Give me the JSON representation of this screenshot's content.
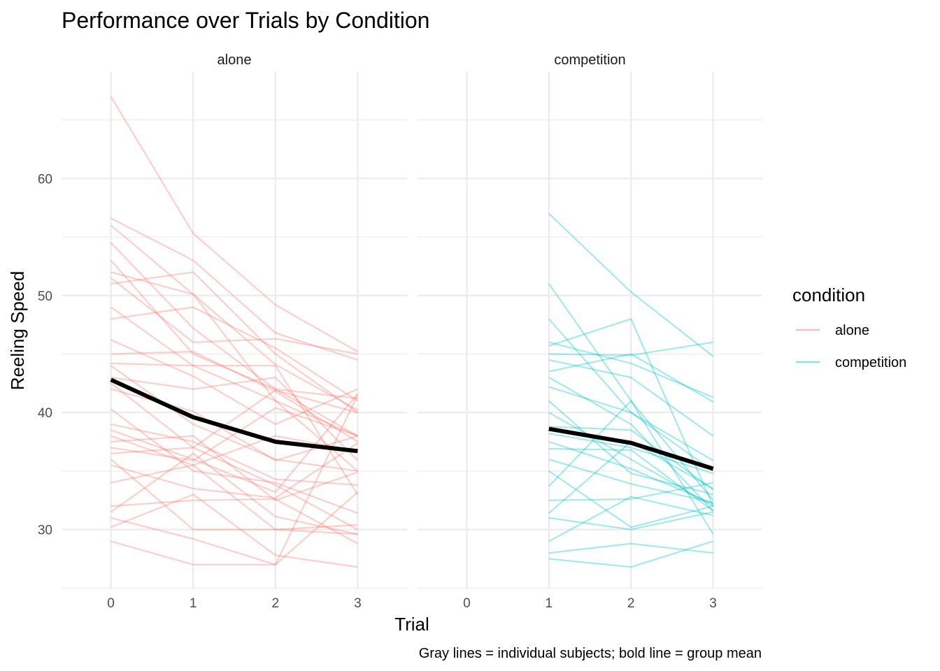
{
  "chart_data": {
    "type": "line",
    "title": "Performance over Trials by Condition",
    "xlabel": "Trial",
    "ylabel": "Reeling Speed",
    "caption": "Gray lines = individual subjects; bold line = group mean",
    "x_ticks": [
      0,
      1,
      2,
      3
    ],
    "y_ticks": [
      30,
      40,
      50,
      60
    ],
    "xlim": [
      -0.6,
      3.6
    ],
    "ylim": [
      24.9,
      69.1
    ],
    "grid": true,
    "legend": {
      "title": "condition",
      "position": "right",
      "entries": [
        {
          "label": "alone",
          "color": "#F8766D"
        },
        {
          "label": "competition",
          "color": "#00BFC4"
        }
      ]
    },
    "mean_color": "#000000",
    "panels": [
      {
        "name": "alone",
        "color": "#F8766D",
        "x": [
          0,
          1,
          2,
          3
        ],
        "mean": [
          42.8,
          39.6,
          37.5,
          36.7
        ],
        "subjects": [
          [
            67.0,
            55.3,
            49.2,
            45.2
          ],
          [
            56.6,
            53.0,
            46.8,
            44.5
          ],
          [
            56.0,
            50.1,
            44.1,
            40.2
          ],
          [
            54.5,
            47.2,
            42.0,
            38.0
          ],
          [
            53.0,
            45.0,
            42.0,
            41.2
          ],
          [
            52.0,
            50.1,
            41.0,
            35.0
          ],
          [
            51.5,
            46.0,
            46.3,
            45.0
          ],
          [
            51.0,
            52.0,
            45.0,
            40.0
          ],
          [
            49.0,
            44.0,
            41.0,
            38.0
          ],
          [
            48.0,
            49.0,
            45.5,
            41.0
          ],
          [
            46.2,
            43.1,
            39.0,
            42.0
          ],
          [
            45.0,
            45.2,
            41.8,
            37.5
          ],
          [
            44.2,
            44.0,
            44.0,
            33.0
          ],
          [
            44.0,
            39.0,
            36.0,
            35.0
          ],
          [
            43.0,
            42.0,
            43.0,
            35.9
          ],
          [
            42.5,
            37.0,
            41.9,
            40.0
          ],
          [
            42.0,
            40.1,
            35.9,
            38.0
          ],
          [
            40.3,
            35.0,
            34.0,
            31.4
          ],
          [
            39.0,
            37.5,
            34.3,
            33.8
          ],
          [
            38.5,
            36.0,
            33.2,
            41.6
          ],
          [
            38.0,
            35.5,
            38.0,
            36.7
          ],
          [
            37.5,
            38.0,
            32.5,
            34.9
          ],
          [
            37.0,
            35.9,
            40.4,
            38.0
          ],
          [
            36.5,
            37.0,
            33.8,
            30.0
          ],
          [
            36.0,
            30.0,
            30.0,
            29.6
          ],
          [
            35.5,
            33.5,
            32.7,
            37.4
          ],
          [
            34.0,
            35.5,
            30.0,
            30.4
          ],
          [
            32.0,
            32.5,
            32.6,
            28.8
          ],
          [
            31.5,
            36.5,
            31.1,
            29.6
          ],
          [
            31.0,
            29.2,
            27.0,
            41.5
          ],
          [
            30.2,
            33.0,
            27.8,
            26.8
          ],
          [
            29.0,
            27.0,
            27.0,
            33.2
          ]
        ]
      },
      {
        "name": "competition",
        "color": "#00BFC4",
        "x": [
          1,
          2,
          3
        ],
        "mean": [
          38.6,
          37.4,
          35.2
        ],
        "subjects": [
          [
            57.0,
            50.3,
            44.8
          ],
          [
            51.0,
            41.0,
            32.5
          ],
          [
            48.0,
            40.0,
            35.9
          ],
          [
            46.0,
            44.2,
            41.3
          ],
          [
            45.7,
            48.0,
            32.0
          ],
          [
            45.0,
            44.9,
            46.0
          ],
          [
            44.5,
            43.0,
            38.0
          ],
          [
            43.5,
            45.0,
            40.9
          ],
          [
            43.0,
            39.0,
            31.6
          ],
          [
            42.2,
            40.0,
            35.0
          ],
          [
            41.0,
            34.8,
            33.0
          ],
          [
            40.0,
            36.0,
            32.0
          ],
          [
            38.8,
            38.5,
            33.4
          ],
          [
            38.2,
            37.0,
            34.8
          ],
          [
            37.5,
            35.2,
            32.2
          ],
          [
            36.9,
            36.8,
            31.6
          ],
          [
            36.0,
            33.9,
            32.3
          ],
          [
            35.0,
            30.2,
            32.0
          ],
          [
            33.7,
            41.0,
            29.6
          ],
          [
            32.5,
            32.6,
            34.0
          ],
          [
            31.4,
            37.5,
            33.5
          ],
          [
            31.0,
            30.0,
            31.5
          ],
          [
            29.0,
            32.8,
            31.2
          ],
          [
            28.0,
            28.8,
            28.0
          ],
          [
            27.5,
            26.8,
            29.0
          ]
        ]
      }
    ]
  }
}
